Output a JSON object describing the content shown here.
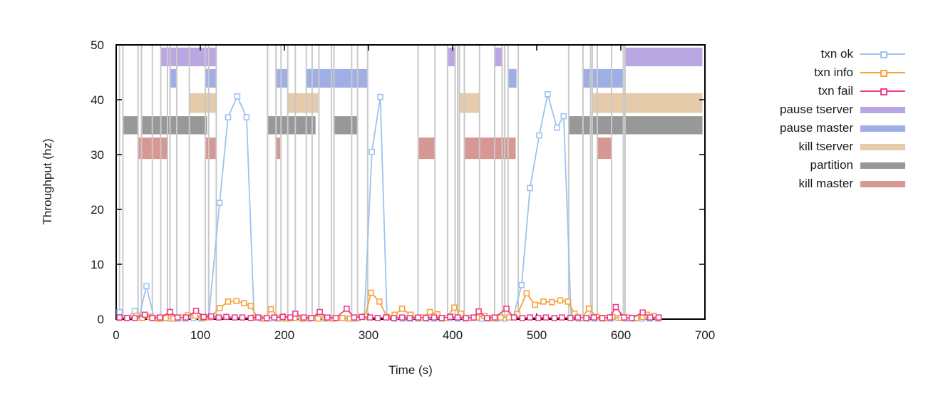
{
  "chart_data": {
    "type": "line",
    "title": "",
    "xlabel": "Time (s)",
    "ylabel": "Throughput (hz)",
    "xlim": [
      0,
      700
    ],
    "ylim": [
      0,
      50
    ],
    "xticks": [
      0,
      100,
      200,
      300,
      400,
      500,
      600,
      700
    ],
    "yticks": [
      0,
      10,
      20,
      30,
      40,
      50
    ],
    "grid": false,
    "legend_position": "outside-right",
    "axis_color": "#1a1a1a",
    "border_color": "#000000",
    "event_line_color": "#c9c9c9",
    "series": [
      {
        "name": "txn ok",
        "color": "#9ec3ee",
        "marker": "open-square",
        "points": [
          [
            4,
            1.3
          ],
          [
            13,
            0.2
          ],
          [
            22,
            1.5
          ],
          [
            27,
            0.3
          ],
          [
            36,
            6.0
          ],
          [
            45,
            0.2
          ],
          [
            54,
            0.1
          ],
          [
            64,
            0.1
          ],
          [
            73,
            0.1
          ],
          [
            82,
            0.1
          ],
          [
            92,
            0.2
          ],
          [
            101,
            0.1
          ],
          [
            110,
            0.3
          ],
          [
            123,
            21.2
          ],
          [
            133,
            36.8
          ],
          [
            144,
            40.6
          ],
          [
            155,
            36.8
          ],
          [
            164,
            0.3
          ],
          [
            173,
            0.1
          ],
          [
            182,
            0.1
          ],
          [
            192,
            0.1
          ],
          [
            201,
            0.1
          ],
          [
            210,
            0.2
          ],
          [
            220,
            0.1
          ],
          [
            229,
            0.1
          ],
          [
            238,
            0.2
          ],
          [
            248,
            0.1
          ],
          [
            257,
            0.1
          ],
          [
            266,
            0.2
          ],
          [
            276,
            0.1
          ],
          [
            285,
            0.1
          ],
          [
            295,
            0.4
          ],
          [
            304,
            30.5
          ],
          [
            314,
            40.5
          ],
          [
            322,
            0.3
          ],
          [
            331,
            0.1
          ],
          [
            341,
            0.1
          ],
          [
            350,
            0.1
          ],
          [
            359,
            0.1
          ],
          [
            369,
            0.1
          ],
          [
            378,
            0.1
          ],
          [
            387,
            0.1
          ],
          [
            397,
            0.2
          ],
          [
            406,
            0.1
          ],
          [
            415,
            0.1
          ],
          [
            425,
            0.2
          ],
          [
            434,
            0.1
          ],
          [
            443,
            0.1
          ],
          [
            453,
            0.1
          ],
          [
            462,
            0.1
          ],
          [
            472,
            0.3
          ],
          [
            482,
            6.2
          ],
          [
            492,
            23.9
          ],
          [
            503,
            33.5
          ],
          [
            513,
            41.0
          ],
          [
            524,
            34.9
          ],
          [
            532,
            37.0
          ],
          [
            541,
            0.3
          ],
          [
            550,
            0.1
          ],
          [
            560,
            0.1
          ],
          [
            569,
            0.1
          ],
          [
            578,
            0.1
          ],
          [
            588,
            0.1
          ],
          [
            597,
            0.2
          ],
          [
            606,
            0.1
          ],
          [
            616,
            0.1
          ],
          [
            625,
            0.1
          ],
          [
            634,
            0.1
          ],
          [
            644,
            0.1
          ]
        ]
      },
      {
        "name": "txn info",
        "color": "#f6a33c",
        "marker": "open-square",
        "points": [
          [
            4,
            0.2
          ],
          [
            13,
            0.2
          ],
          [
            24,
            0.6
          ],
          [
            31,
            0.2
          ],
          [
            40,
            0.4
          ],
          [
            50,
            0.1
          ],
          [
            59,
            0.2
          ],
          [
            68,
            0.1
          ],
          [
            78,
            0.3
          ],
          [
            85,
            0.7
          ],
          [
            94,
            0.6
          ],
          [
            103,
            0.2
          ],
          [
            112,
            0.4
          ],
          [
            123,
            2.0
          ],
          [
            133,
            3.2
          ],
          [
            143,
            3.3
          ],
          [
            152,
            2.9
          ],
          [
            160,
            2.4
          ],
          [
            168,
            0.3
          ],
          [
            177,
            0.1
          ],
          [
            184,
            1.8
          ],
          [
            194,
            0.2
          ],
          [
            203,
            0.1
          ],
          [
            212,
            0.2
          ],
          [
            222,
            0.1
          ],
          [
            231,
            0.2
          ],
          [
            240,
            0.1
          ],
          [
            250,
            0.2
          ],
          [
            259,
            0.1
          ],
          [
            269,
            0.2
          ],
          [
            278,
            0.1
          ],
          [
            287,
            0.2
          ],
          [
            296,
            0.5
          ],
          [
            303,
            4.8
          ],
          [
            313,
            3.2
          ],
          [
            322,
            0.4
          ],
          [
            331,
            0.8
          ],
          [
            340,
            1.9
          ],
          [
            350,
            0.8
          ],
          [
            359,
            0.2
          ],
          [
            364,
            0.3
          ],
          [
            373,
            1.3
          ],
          [
            382,
            0.9
          ],
          [
            392,
            0.2
          ],
          [
            402,
            2.1
          ],
          [
            410,
            1.0
          ],
          [
            420,
            0.2
          ],
          [
            429,
            0.3
          ],
          [
            438,
            0.6
          ],
          [
            448,
            0.2
          ],
          [
            457,
            0.3
          ],
          [
            467,
            0.3
          ],
          [
            477,
            0.9
          ],
          [
            488,
            4.7
          ],
          [
            498,
            2.6
          ],
          [
            508,
            3.2
          ],
          [
            518,
            3.1
          ],
          [
            528,
            3.4
          ],
          [
            537,
            3.2
          ],
          [
            545,
            1.0
          ],
          [
            553,
            0.2
          ],
          [
            562,
            1.9
          ],
          [
            571,
            0.4
          ],
          [
            581,
            0.2
          ],
          [
            590,
            0.4
          ],
          [
            600,
            0.2
          ],
          [
            609,
            0.3
          ],
          [
            618,
            0.2
          ],
          [
            626,
            0.4
          ],
          [
            631,
            0.8
          ],
          [
            639,
            0.6
          ],
          [
            645,
            0.2
          ]
        ]
      },
      {
        "name": "txn fail",
        "color": "#ee3c86",
        "marker": "open-square",
        "points": [
          [
            4,
            0.3
          ],
          [
            13,
            0.2
          ],
          [
            22,
            0.2
          ],
          [
            34,
            0.8
          ],
          [
            43,
            0.2
          ],
          [
            52,
            0.3
          ],
          [
            64,
            1.3
          ],
          [
            73,
            0.3
          ],
          [
            83,
            0.3
          ],
          [
            95,
            1.5
          ],
          [
            104,
            0.4
          ],
          [
            113,
            0.5
          ],
          [
            122,
            0.3
          ],
          [
            131,
            0.4
          ],
          [
            141,
            0.3
          ],
          [
            150,
            0.3
          ],
          [
            160,
            0.2
          ],
          [
            169,
            0.3
          ],
          [
            179,
            0.2
          ],
          [
            188,
            0.3
          ],
          [
            198,
            0.4
          ],
          [
            207,
            0.3
          ],
          [
            213,
            1.0
          ],
          [
            223,
            0.3
          ],
          [
            232,
            0.2
          ],
          [
            242,
            1.3
          ],
          [
            251,
            0.3
          ],
          [
            261,
            0.2
          ],
          [
            274,
            1.9
          ],
          [
            283,
            0.3
          ],
          [
            292,
            0.4
          ],
          [
            302,
            0.3
          ],
          [
            311,
            0.2
          ],
          [
            321,
            0.3
          ],
          [
            330,
            0.2
          ],
          [
            340,
            0.3
          ],
          [
            349,
            0.2
          ],
          [
            359,
            0.3
          ],
          [
            368,
            0.2
          ],
          [
            378,
            0.3
          ],
          [
            387,
            0.2
          ],
          [
            397,
            0.4
          ],
          [
            406,
            0.3
          ],
          [
            416,
            0.2
          ],
          [
            425,
            0.3
          ],
          [
            431,
            1.4
          ],
          [
            441,
            0.2
          ],
          [
            450,
            0.3
          ],
          [
            464,
            1.9
          ],
          [
            473,
            0.3
          ],
          [
            483,
            0.2
          ],
          [
            492,
            0.3
          ],
          [
            502,
            0.2
          ],
          [
            511,
            0.3
          ],
          [
            521,
            0.2
          ],
          [
            530,
            0.3
          ],
          [
            540,
            0.2
          ],
          [
            549,
            0.3
          ],
          [
            559,
            0.2
          ],
          [
            568,
            0.3
          ],
          [
            578,
            0.2
          ],
          [
            587,
            0.3
          ],
          [
            594,
            2.2
          ],
          [
            604,
            0.3
          ],
          [
            613,
            0.2
          ],
          [
            626,
            1.2
          ],
          [
            635,
            0.3
          ],
          [
            645,
            0.3
          ]
        ]
      }
    ],
    "bands": [
      {
        "name": "pause tserver",
        "color": "#b9a7e2",
        "y_range": [
          46.1,
          49.5
        ],
        "intervals": [
          [
            53,
            120
          ],
          [
            394,
            403
          ],
          [
            450,
            459
          ],
          [
            605,
            697
          ]
        ]
      },
      {
        "name": "pause master",
        "color": "#9fafe6",
        "y_range": [
          42.2,
          45.6
        ],
        "intervals": [
          [
            64,
            72
          ],
          [
            106,
            119
          ],
          [
            190,
            204
          ],
          [
            226,
            299
          ],
          [
            466,
            476
          ],
          [
            555,
            603
          ]
        ]
      },
      {
        "name": "kill tserver",
        "color": "#e5cbaa",
        "y_range": [
          37.6,
          41.2
        ],
        "intervals": [
          [
            87,
            119
          ],
          [
            204,
            240
          ],
          [
            408,
            432
          ],
          [
            566,
            697
          ]
        ]
      },
      {
        "name": "partition",
        "color": "#989898",
        "y_range": [
          33.7,
          37.0
        ],
        "intervals": [
          [
            8,
            26
          ],
          [
            31,
            108
          ],
          [
            180,
            237
          ],
          [
            258,
            287
          ],
          [
            538,
            697
          ]
        ]
      },
      {
        "name": "kill master",
        "color": "#d79793",
        "y_range": [
          29.2,
          33.1
        ],
        "intervals": [
          [
            26,
            61
          ],
          [
            106,
            119
          ],
          [
            190,
            195
          ],
          [
            360,
            379
          ],
          [
            414,
            475
          ],
          [
            572,
            589
          ]
        ]
      }
    ],
    "event_lines": [
      4,
      8,
      26,
      30,
      43,
      53,
      61,
      64,
      72,
      87,
      106,
      110,
      119,
      180,
      190,
      196,
      204,
      213,
      226,
      233,
      241,
      256,
      259,
      280,
      287,
      299,
      359,
      379,
      394,
      403,
      406,
      408,
      414,
      432,
      450,
      459,
      462,
      466,
      478,
      538,
      555,
      564,
      566,
      572,
      589,
      603,
      605
    ],
    "legend_order": [
      "txn ok",
      "txn info",
      "txn fail",
      "pause tserver",
      "pause master",
      "kill tserver",
      "partition",
      "kill master"
    ]
  }
}
